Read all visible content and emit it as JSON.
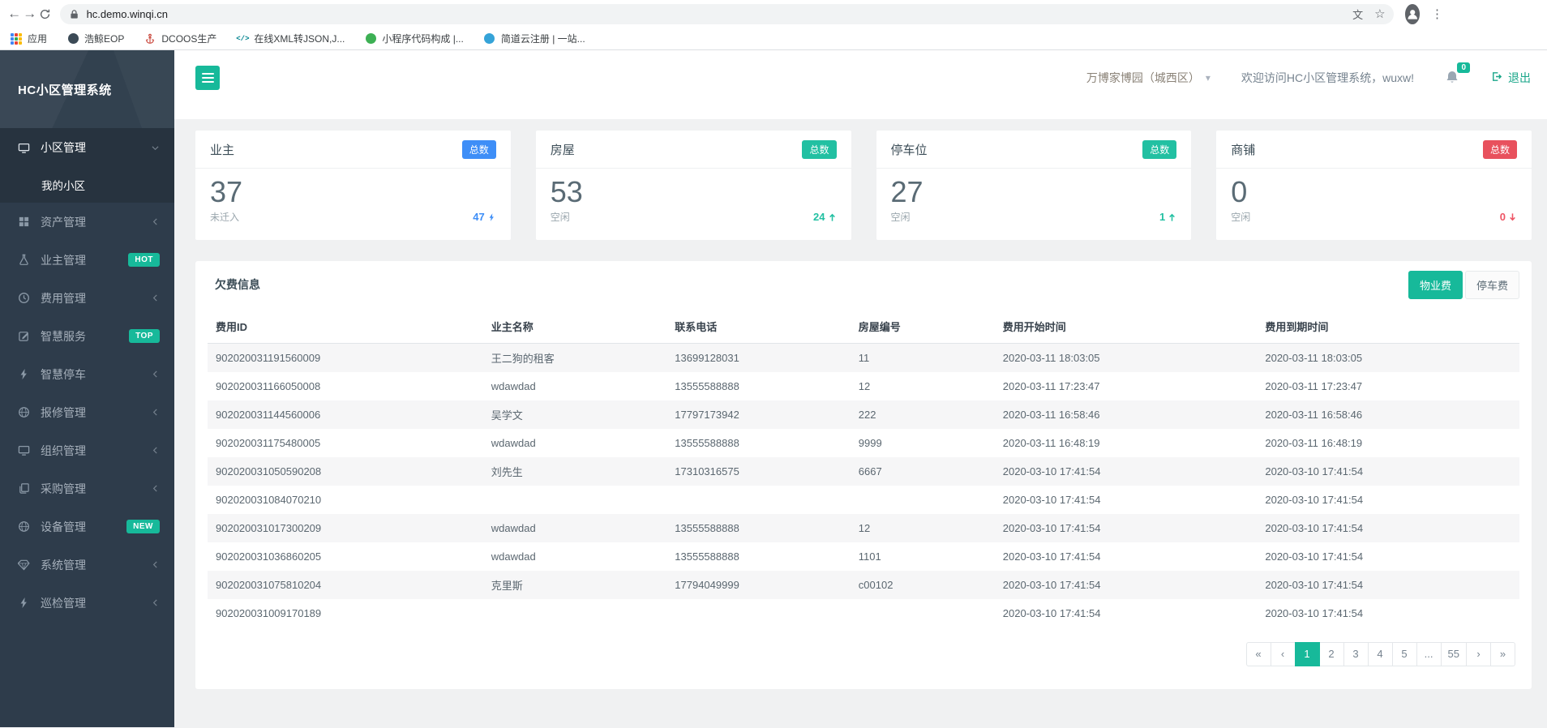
{
  "browser": {
    "url": "hc.demo.winqi.cn",
    "bookmarks": [
      {
        "key": "apps",
        "label": "应用",
        "icon": "apps-grid"
      },
      {
        "key": "haojing-eop",
        "label": "浩鲸EOP",
        "icon": "dark-globe"
      },
      {
        "key": "dcoos",
        "label": "DCOOS生产",
        "icon": "red-anchor"
      },
      {
        "key": "xml2json",
        "label": "在线XML转JSON,J...",
        "icon": "code-brackets"
      },
      {
        "key": "miniprogram",
        "label": "小程序代码构成 |...",
        "icon": "green-dot"
      },
      {
        "key": "jiandaoyun",
        "label": "简道云注册 | 一站...",
        "icon": "blue-cloud"
      }
    ]
  },
  "sidebar": {
    "brand": "HC小区管理系统",
    "items": [
      {
        "key": "community",
        "label": "小区管理",
        "icon": "monitor",
        "active": true,
        "chevron": "down",
        "children": [
          {
            "key": "my-community",
            "label": "我的小区",
            "active": true
          }
        ]
      },
      {
        "key": "asset",
        "label": "资产管理",
        "icon": "grid",
        "chevron": "left"
      },
      {
        "key": "owner",
        "label": "业主管理",
        "icon": "flask",
        "badge": "HOT"
      },
      {
        "key": "fee",
        "label": "费用管理",
        "icon": "clock",
        "chevron": "left"
      },
      {
        "key": "smart-service",
        "label": "智慧服务",
        "icon": "edit",
        "badge": "TOP"
      },
      {
        "key": "smart-parking",
        "label": "智慧停车",
        "icon": "bolt",
        "chevron": "left"
      },
      {
        "key": "repair",
        "label": "报修管理",
        "icon": "globe",
        "chevron": "left"
      },
      {
        "key": "organization",
        "label": "组织管理",
        "icon": "monitor",
        "chevron": "left"
      },
      {
        "key": "procurement",
        "label": "采购管理",
        "icon": "copy",
        "chevron": "left"
      },
      {
        "key": "equipment",
        "label": "设备管理",
        "icon": "globe",
        "badge": "NEW"
      },
      {
        "key": "system",
        "label": "系统管理",
        "icon": "gem",
        "chevron": "left"
      },
      {
        "key": "inspection",
        "label": "巡检管理",
        "icon": "bolt",
        "chevron": "left"
      }
    ]
  },
  "header": {
    "community": "万博家博园（城西区）",
    "welcome": "欢迎访问HC小区管理系统，wuxw!",
    "notification_count": "0",
    "logout_label": "退出"
  },
  "colors": {
    "accent": "#17b99a",
    "blue": "#3e8ef7",
    "teal": "#22c0a2",
    "red": "#e8515d"
  },
  "cards": [
    {
      "key": "owners",
      "title": "业主",
      "badge": "总数",
      "badge_color": "#3e8ef7",
      "value": "37",
      "sub_label": "未迁入",
      "sub_value": "47",
      "trend_icon": "bolt",
      "trend_color": "#3e8ef7"
    },
    {
      "key": "houses",
      "title": "房屋",
      "badge": "总数",
      "badge_color": "#22c0a2",
      "value": "53",
      "sub_label": "空闲",
      "sub_value": "24",
      "trend_icon": "arrow-up",
      "trend_color": "#22c0a2"
    },
    {
      "key": "parking",
      "title": "停车位",
      "badge": "总数",
      "badge_color": "#22c0a2",
      "value": "27",
      "sub_label": "空闲",
      "sub_value": "1",
      "trend_icon": "arrow-up",
      "trend_color": "#22c0a2"
    },
    {
      "key": "shops",
      "title": "商铺",
      "badge": "总数",
      "badge_color": "#e8515d",
      "value": "0",
      "sub_label": "空闲",
      "sub_value": "0",
      "trend_icon": "arrow-down",
      "trend_color": "#ee5565"
    }
  ],
  "table": {
    "title": "欠费信息",
    "buttons": [
      {
        "key": "property-fee",
        "label": "物业费",
        "active": true
      },
      {
        "key": "parking-fee",
        "label": "停车费",
        "active": false
      }
    ],
    "columns": [
      "费用ID",
      "业主名称",
      "联系电话",
      "房屋编号",
      "费用开始时间",
      "费用到期时间"
    ],
    "rows": [
      [
        "902020031191560009",
        "王二狗的租客",
        "13699128031",
        "11",
        "2020-03-11 18:03:05",
        "2020-03-11 18:03:05"
      ],
      [
        "902020031166050008",
        "wdawdad",
        "13555588888",
        "12",
        "2020-03-11 17:23:47",
        "2020-03-11 17:23:47"
      ],
      [
        "902020031144560006",
        "吴学文",
        "17797173942",
        "222",
        "2020-03-11 16:58:46",
        "2020-03-11 16:58:46"
      ],
      [
        "902020031175480005",
        "wdawdad",
        "13555588888",
        "9999",
        "2020-03-11 16:48:19",
        "2020-03-11 16:48:19"
      ],
      [
        "902020031050590208",
        "刘先生",
        "17310316575",
        "6667",
        "2020-03-10 17:41:54",
        "2020-03-10 17:41:54"
      ],
      [
        "902020031084070210",
        "",
        "",
        "",
        "2020-03-10 17:41:54",
        "2020-03-10 17:41:54"
      ],
      [
        "902020031017300209",
        "wdawdad",
        "13555588888",
        "12",
        "2020-03-10 17:41:54",
        "2020-03-10 17:41:54"
      ],
      [
        "902020031036860205",
        "wdawdad",
        "13555588888",
        "1101",
        "2020-03-10 17:41:54",
        "2020-03-10 17:41:54"
      ],
      [
        "902020031075810204",
        "克里斯",
        "17794049999",
        "c00102",
        "2020-03-10 17:41:54",
        "2020-03-10 17:41:54"
      ],
      [
        "902020031009170189",
        "",
        "",
        "",
        "2020-03-10 17:41:54",
        "2020-03-10 17:41:54"
      ]
    ],
    "pagination": {
      "pages": [
        "«",
        "‹",
        "1",
        "2",
        "3",
        "4",
        "5",
        "...",
        "55",
        "›",
        "»"
      ],
      "active": "1"
    }
  }
}
